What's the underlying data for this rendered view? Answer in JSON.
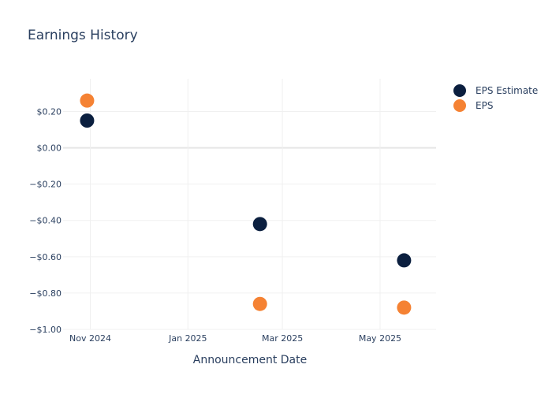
{
  "chart_data": {
    "type": "scatter",
    "title": "Earnings History",
    "xlabel": "Announcement Date",
    "ylabel": "",
    "x_range": [
      "2024-10-15",
      "2025-06-05"
    ],
    "ylim": [
      -1.0,
      0.38
    ],
    "x_ticks": [
      {
        "date": "2024-11-01",
        "label": "Nov 2024"
      },
      {
        "date": "2025-01-01",
        "label": "Jan 2025"
      },
      {
        "date": "2025-03-01",
        "label": "Mar 2025"
      },
      {
        "date": "2025-05-01",
        "label": "May 2025"
      }
    ],
    "y_ticks": [
      {
        "value": 0.2,
        "label": "$0.20"
      },
      {
        "value": 0.0,
        "label": "$0.00"
      },
      {
        "value": -0.2,
        "label": "−$0.20"
      },
      {
        "value": -0.4,
        "label": "−$0.40"
      },
      {
        "value": -0.6,
        "label": "−$0.60"
      },
      {
        "value": -0.8,
        "label": "−$0.80"
      },
      {
        "value": -1.0,
        "label": "−$1.00"
      }
    ],
    "grid": true,
    "legend_position": "top-right",
    "series": [
      {
        "name": "EPS Estimate",
        "color": "#0b1f3f",
        "points": [
          {
            "x": "2024-10-30",
            "y": 0.15
          },
          {
            "x": "2025-02-15",
            "y": -0.42
          },
          {
            "x": "2025-05-16",
            "y": -0.62
          }
        ]
      },
      {
        "name": "EPS",
        "color": "#f58233",
        "points": [
          {
            "x": "2024-10-30",
            "y": 0.26
          },
          {
            "x": "2025-02-15",
            "y": -0.86
          },
          {
            "x": "2025-05-16",
            "y": -0.88
          }
        ]
      }
    ]
  }
}
